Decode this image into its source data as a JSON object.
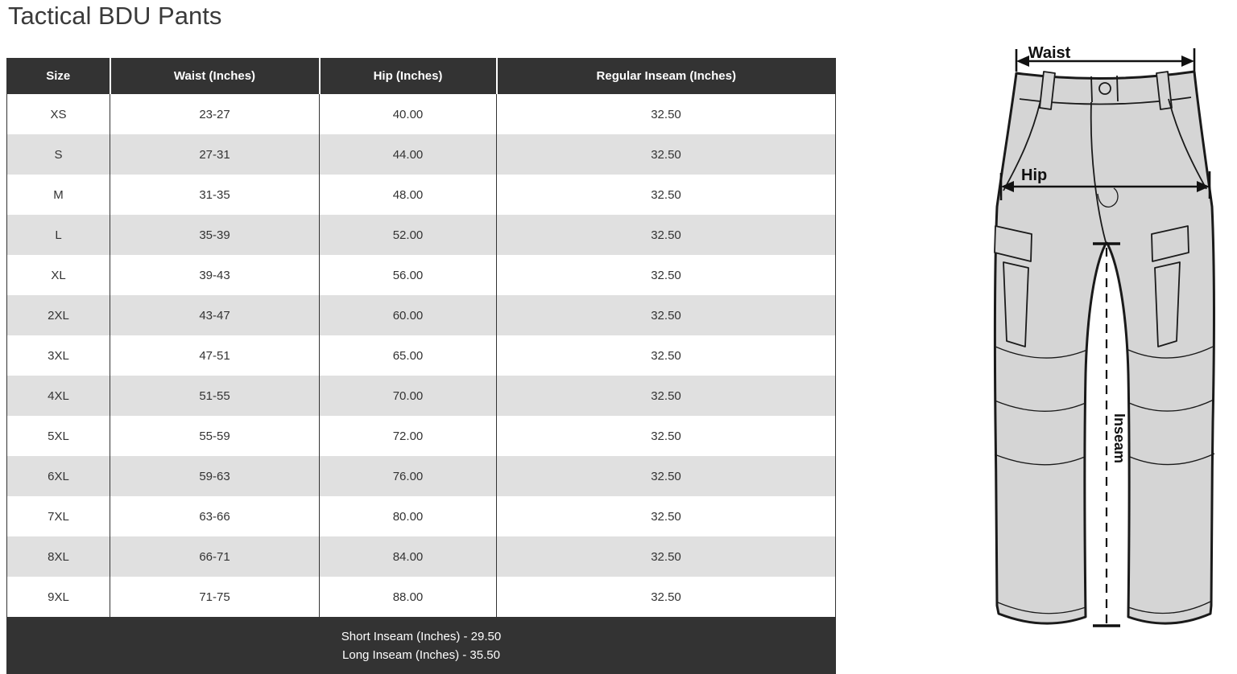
{
  "page": {
    "title": "Tactical BDU Pants"
  },
  "size_chart": {
    "columns": [
      "Size",
      "Waist (Inches)",
      "Hip (Inches)",
      "Regular Inseam (Inches)"
    ],
    "rows": [
      {
        "size": "XS",
        "waist": "23-27",
        "hip": "40.00",
        "regular_inseam": "32.50"
      },
      {
        "size": "S",
        "waist": "27-31",
        "hip": "44.00",
        "regular_inseam": "32.50"
      },
      {
        "size": "M",
        "waist": "31-35",
        "hip": "48.00",
        "regular_inseam": "32.50"
      },
      {
        "size": "L",
        "waist": "35-39",
        "hip": "52.00",
        "regular_inseam": "32.50"
      },
      {
        "size": "XL",
        "waist": "39-43",
        "hip": "56.00",
        "regular_inseam": "32.50"
      },
      {
        "size": "2XL",
        "waist": "43-47",
        "hip": "60.00",
        "regular_inseam": "32.50"
      },
      {
        "size": "3XL",
        "waist": "47-51",
        "hip": "65.00",
        "regular_inseam": "32.50"
      },
      {
        "size": "4XL",
        "waist": "51-55",
        "hip": "70.00",
        "regular_inseam": "32.50"
      },
      {
        "size": "5XL",
        "waist": "55-59",
        "hip": "72.00",
        "regular_inseam": "32.50"
      },
      {
        "size": "6XL",
        "waist": "59-63",
        "hip": "76.00",
        "regular_inseam": "32.50"
      },
      {
        "size": "7XL",
        "waist": "63-66",
        "hip": "80.00",
        "regular_inseam": "32.50"
      },
      {
        "size": "8XL",
        "waist": "66-71",
        "hip": "84.00",
        "regular_inseam": "32.50"
      },
      {
        "size": "9XL",
        "waist": "71-75",
        "hip": "88.00",
        "regular_inseam": "32.50"
      }
    ],
    "footer_lines": [
      "Short Inseam (Inches) - 29.50",
      "Long Inseam (Inches) - 35.50"
    ]
  },
  "diagram": {
    "waist_label": "Waist",
    "hip_label": "Hip",
    "inseam_label": "Inseam"
  },
  "colors": {
    "header_bg": "#333333",
    "header_text": "#ffffff",
    "row_bg": "#ffffff",
    "row_alt_bg": "#e0e0e0",
    "body_text": "#333333",
    "pants_fill": "#d5d5d5",
    "line_color": "#1a1a1a"
  }
}
